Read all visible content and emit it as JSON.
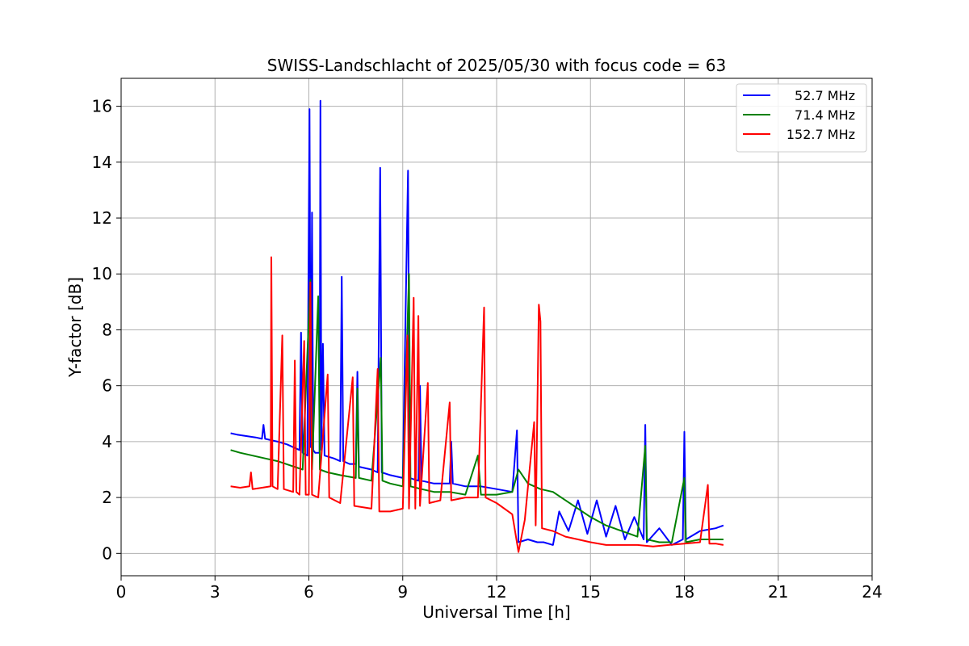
{
  "chart_data": {
    "type": "line",
    "title": "SWISS-Landschlacht of 2025/05/30 with focus code = 63",
    "xlabel": "Universal Time [h]",
    "ylabel": "Y-factor [dB]",
    "xlim": [
      0,
      24
    ],
    "ylim": [
      -0.8,
      17
    ],
    "xticks": [
      0,
      3,
      6,
      9,
      12,
      15,
      18,
      21,
      24
    ],
    "yticks": [
      0,
      2,
      4,
      6,
      8,
      10,
      12,
      14,
      16
    ],
    "grid": true,
    "legend_position": "top-right",
    "series": [
      {
        "name": "52.7 MHz",
        "color": "#0000ff",
        "points": [
          [
            3.5,
            4.3
          ],
          [
            3.7,
            4.25
          ],
          [
            4.0,
            4.2
          ],
          [
            4.3,
            4.15
          ],
          [
            4.5,
            4.1
          ],
          [
            4.55,
            4.6
          ],
          [
            4.6,
            4.1
          ],
          [
            4.8,
            4.05
          ],
          [
            5.0,
            4.0
          ],
          [
            5.3,
            3.9
          ],
          [
            5.5,
            3.8
          ],
          [
            5.7,
            3.7
          ],
          [
            5.75,
            7.9
          ],
          [
            5.8,
            3.6
          ],
          [
            5.95,
            3.5
          ],
          [
            6.02,
            15.9
          ],
          [
            6.06,
            3.8
          ],
          [
            6.1,
            12.2
          ],
          [
            6.14,
            3.7
          ],
          [
            6.2,
            3.6
          ],
          [
            6.34,
            3.6
          ],
          [
            6.37,
            16.2
          ],
          [
            6.4,
            3.7
          ],
          [
            6.45,
            7.5
          ],
          [
            6.5,
            3.5
          ],
          [
            6.8,
            3.4
          ],
          [
            7.0,
            3.3
          ],
          [
            7.05,
            9.9
          ],
          [
            7.1,
            3.3
          ],
          [
            7.3,
            3.2
          ],
          [
            7.5,
            3.2
          ],
          [
            7.55,
            6.5
          ],
          [
            7.6,
            3.1
          ],
          [
            8.0,
            3.0
          ],
          [
            8.2,
            2.9
          ],
          [
            8.28,
            13.8
          ],
          [
            8.33,
            2.9
          ],
          [
            8.6,
            2.8
          ],
          [
            9.0,
            2.7
          ],
          [
            9.17,
            13.7
          ],
          [
            9.22,
            2.7
          ],
          [
            9.5,
            2.6
          ],
          [
            9.55,
            6.0
          ],
          [
            9.6,
            2.6
          ],
          [
            10.0,
            2.5
          ],
          [
            10.5,
            2.5
          ],
          [
            10.55,
            4.0
          ],
          [
            10.6,
            2.5
          ],
          [
            11.0,
            2.4
          ],
          [
            11.5,
            2.4
          ],
          [
            12.0,
            2.3
          ],
          [
            12.5,
            2.2
          ],
          [
            12.65,
            4.4
          ],
          [
            12.7,
            0.4
          ],
          [
            13.0,
            0.5
          ],
          [
            13.3,
            0.4
          ],
          [
            13.5,
            0.4
          ],
          [
            13.8,
            0.3
          ],
          [
            14.0,
            1.5
          ],
          [
            14.3,
            0.8
          ],
          [
            14.6,
            1.9
          ],
          [
            14.9,
            0.7
          ],
          [
            15.2,
            1.9
          ],
          [
            15.5,
            0.6
          ],
          [
            15.8,
            1.7
          ],
          [
            16.1,
            0.5
          ],
          [
            16.4,
            1.3
          ],
          [
            16.7,
            0.5
          ],
          [
            16.75,
            4.6
          ],
          [
            16.8,
            0.4
          ],
          [
            17.2,
            0.9
          ],
          [
            17.6,
            0.3
          ],
          [
            17.95,
            0.5
          ],
          [
            18.0,
            4.35
          ],
          [
            18.05,
            0.5
          ],
          [
            18.5,
            0.8
          ],
          [
            19.0,
            0.9
          ],
          [
            19.25,
            1.0
          ]
        ]
      },
      {
        "name": "71.4 MHz",
        "color": "#008000",
        "points": [
          [
            3.5,
            3.7
          ],
          [
            3.8,
            3.6
          ],
          [
            4.2,
            3.5
          ],
          [
            4.6,
            3.4
          ],
          [
            5.0,
            3.3
          ],
          [
            5.4,
            3.15
          ],
          [
            5.8,
            3.0
          ],
          [
            6.05,
            9.8
          ],
          [
            6.1,
            3.0
          ],
          [
            6.3,
            9.2
          ],
          [
            6.35,
            3.0
          ],
          [
            6.6,
            2.9
          ],
          [
            7.0,
            2.8
          ],
          [
            7.5,
            2.7
          ],
          [
            7.55,
            5.9
          ],
          [
            7.6,
            2.7
          ],
          [
            8.0,
            2.6
          ],
          [
            8.3,
            7.0
          ],
          [
            8.35,
            2.6
          ],
          [
            8.6,
            2.5
          ],
          [
            9.0,
            2.4
          ],
          [
            9.2,
            10.0
          ],
          [
            9.25,
            2.4
          ],
          [
            9.6,
            2.3
          ],
          [
            10.0,
            2.2
          ],
          [
            10.5,
            2.2
          ],
          [
            11.0,
            2.1
          ],
          [
            11.4,
            3.5
          ],
          [
            11.5,
            2.1
          ],
          [
            12.0,
            2.1
          ],
          [
            12.5,
            2.2
          ],
          [
            12.7,
            3.0
          ],
          [
            13.0,
            2.5
          ],
          [
            13.4,
            2.3
          ],
          [
            13.8,
            2.2
          ],
          [
            14.2,
            1.9
          ],
          [
            14.6,
            1.6
          ],
          [
            15.0,
            1.3
          ],
          [
            15.5,
            1.0
          ],
          [
            16.0,
            0.8
          ],
          [
            16.5,
            0.6
          ],
          [
            16.75,
            3.85
          ],
          [
            16.8,
            0.5
          ],
          [
            17.2,
            0.4
          ],
          [
            17.6,
            0.4
          ],
          [
            18.0,
            2.7
          ],
          [
            18.05,
            0.4
          ],
          [
            18.5,
            0.5
          ],
          [
            19.0,
            0.5
          ],
          [
            19.25,
            0.5
          ]
        ]
      },
      {
        "name": "152.7 MHz",
        "color": "#ff0000",
        "points": [
          [
            3.5,
            2.4
          ],
          [
            3.8,
            2.35
          ],
          [
            4.1,
            2.4
          ],
          [
            4.15,
            2.9
          ],
          [
            4.2,
            2.3
          ],
          [
            4.5,
            2.35
          ],
          [
            4.78,
            2.4
          ],
          [
            4.8,
            10.6
          ],
          [
            4.84,
            2.4
          ],
          [
            5.0,
            2.3
          ],
          [
            5.15,
            7.8
          ],
          [
            5.2,
            2.3
          ],
          [
            5.5,
            2.2
          ],
          [
            5.55,
            6.9
          ],
          [
            5.6,
            2.2
          ],
          [
            5.7,
            2.1
          ],
          [
            5.85,
            7.6
          ],
          [
            5.9,
            2.1
          ],
          [
            6.0,
            2.1
          ],
          [
            6.05,
            9.7
          ],
          [
            6.1,
            2.1
          ],
          [
            6.3,
            2.0
          ],
          [
            6.6,
            6.4
          ],
          [
            6.65,
            2.0
          ],
          [
            7.0,
            1.8
          ],
          [
            7.4,
            6.3
          ],
          [
            7.45,
            1.7
          ],
          [
            8.0,
            1.6
          ],
          [
            8.2,
            6.6
          ],
          [
            8.25,
            1.5
          ],
          [
            8.6,
            1.5
          ],
          [
            9.0,
            1.6
          ],
          [
            9.15,
            7.8
          ],
          [
            9.2,
            1.6
          ],
          [
            9.35,
            9.15
          ],
          [
            9.4,
            1.6
          ],
          [
            9.5,
            8.5
          ],
          [
            9.55,
            1.7
          ],
          [
            9.8,
            6.1
          ],
          [
            9.85,
            1.8
          ],
          [
            10.2,
            1.9
          ],
          [
            10.5,
            5.4
          ],
          [
            10.55,
            1.9
          ],
          [
            11.0,
            2.0
          ],
          [
            11.4,
            2.0
          ],
          [
            11.6,
            8.8
          ],
          [
            11.65,
            2.0
          ],
          [
            12.0,
            1.8
          ],
          [
            12.5,
            1.4
          ],
          [
            12.7,
            0.05
          ],
          [
            12.9,
            1.2
          ],
          [
            13.2,
            4.7
          ],
          [
            13.25,
            1.0
          ],
          [
            13.35,
            8.9
          ],
          [
            13.4,
            8.3
          ],
          [
            13.45,
            0.9
          ],
          [
            13.8,
            0.8
          ],
          [
            14.2,
            0.6
          ],
          [
            14.6,
            0.5
          ],
          [
            15.0,
            0.4
          ],
          [
            15.5,
            0.3
          ],
          [
            16.0,
            0.3
          ],
          [
            16.5,
            0.3
          ],
          [
            17.0,
            0.25
          ],
          [
            17.5,
            0.3
          ],
          [
            18.0,
            0.35
          ],
          [
            18.5,
            0.4
          ],
          [
            18.75,
            2.45
          ],
          [
            18.8,
            0.35
          ],
          [
            19.0,
            0.35
          ],
          [
            19.25,
            0.3
          ]
        ]
      }
    ]
  }
}
